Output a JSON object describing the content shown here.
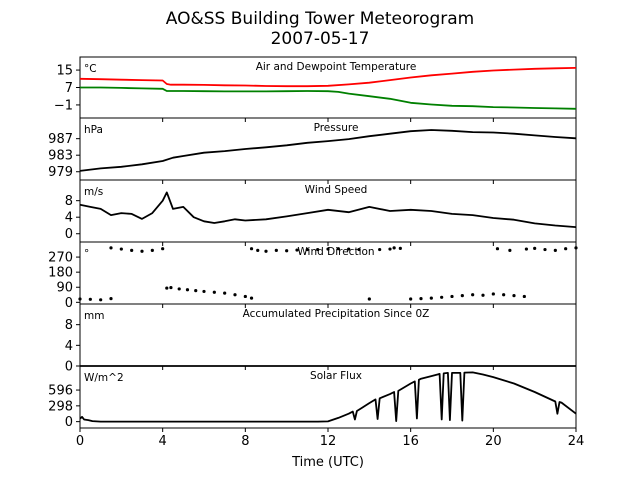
{
  "chart_data": {
    "type": "line",
    "title": "AO&SS Building Tower Meteorogram",
    "subtitle": "2007-05-17",
    "xlabel": "Time (UTC)",
    "xlim": [
      0,
      24
    ],
    "xticks": [
      0,
      4,
      8,
      12,
      16,
      20,
      24
    ],
    "xtick_labels": [
      "0",
      "4",
      "8",
      "12",
      "16",
      "20",
      "24"
    ],
    "panels": [
      {
        "key": "temp",
        "title": "Air and Dewpoint Temperature",
        "unit": "°C",
        "ylim": [
          -7,
          21
        ],
        "yticks": [
          15,
          7,
          -1
        ],
        "ytick_labels": [
          "15",
          "7",
          "−1"
        ],
        "series": [
          {
            "color": "#ff0000",
            "style": "line",
            "x": [
              0,
              1,
              2,
              3,
              4,
              4.2,
              4.4,
              5,
              6,
              7,
              8,
              9,
              10,
              11,
              12,
              13,
              14,
              15,
              16,
              17,
              18,
              19,
              20,
              21,
              22,
              23,
              24
            ],
            "y": [
              11,
              10.8,
              10.6,
              10.4,
              10.2,
              8.6,
              8.3,
              8.3,
              8.2,
              8,
              7.9,
              7.7,
              7.6,
              7.6,
              7.8,
              8.4,
              9.2,
              10.4,
              11.6,
              12.6,
              13.4,
              14.2,
              14.8,
              15.2,
              15.6,
              15.8,
              16
            ]
          },
          {
            "color": "#008000",
            "style": "line",
            "x": [
              0,
              1,
              2,
              3,
              4,
              4.2,
              5,
              6,
              7,
              8,
              9,
              10,
              11,
              12,
              12.5,
              13,
              14,
              15,
              16,
              17,
              18,
              19,
              20,
              21,
              22,
              23,
              24
            ],
            "y": [
              7,
              7,
              6.8,
              6.6,
              6.4,
              5.4,
              5.4,
              5.3,
              5.2,
              5.2,
              5.2,
              5.3,
              5.4,
              5.3,
              5,
              4.2,
              3,
              1.8,
              0,
              -0.8,
              -1.4,
              -1.6,
              -2,
              -2.2,
              -2.4,
              -2.6,
              -2.8
            ]
          }
        ]
      },
      {
        "key": "pres",
        "title": "Pressure",
        "unit": "hPa",
        "ylim": [
          977,
          992
        ],
        "yticks": [
          987,
          983,
          979
        ],
        "ytick_labels": [
          "987",
          "983",
          "979"
        ],
        "series": [
          {
            "color": "#000000",
            "style": "line",
            "x": [
              0,
              1,
              2,
              3,
              4,
              4.5,
              5,
              6,
              7,
              8,
              9,
              10,
              11,
              12,
              13,
              14,
              15,
              16,
              17,
              18,
              19,
              20,
              21,
              22,
              23,
              24
            ],
            "y": [
              979.2,
              979.8,
              980.2,
              980.8,
              981.6,
              982.4,
              982.8,
              983.6,
              984,
              984.5,
              984.9,
              985.4,
              986,
              986.4,
              986.9,
              987.6,
              988.2,
              988.8,
              989.1,
              988.9,
              988.6,
              988.5,
              988.2,
              987.8,
              987.4,
              987.1
            ]
          }
        ]
      },
      {
        "key": "wind",
        "title": "Wind Speed",
        "unit": "m/s",
        "ylim": [
          -2,
          13
        ],
        "yticks": [
          8,
          4,
          0
        ],
        "ytick_labels": [
          "8",
          "4",
          "0"
        ],
        "series": [
          {
            "color": "#000000",
            "style": "line",
            "x": [
              0,
              0.5,
              1,
              1.5,
              2,
              2.5,
              3,
              3.5,
              4,
              4.2,
              4.5,
              5,
              5.5,
              6,
              6.5,
              7,
              7.5,
              8,
              9,
              10,
              11,
              12,
              13,
              14,
              15,
              16,
              17,
              18,
              19,
              20,
              21,
              22,
              23,
              24
            ],
            "y": [
              7,
              6.5,
              6,
              4.5,
              5,
              4.8,
              3.6,
              5,
              8,
              10,
              6,
              6.5,
              4,
              3,
              2.6,
              3,
              3.5,
              3.2,
              3.5,
              4.2,
              5,
              5.8,
              5.2,
              6.5,
              5.5,
              5.8,
              5.5,
              4.8,
              4.5,
              3.8,
              3.4,
              2.5,
              2,
              1.6
            ]
          }
        ]
      },
      {
        "key": "dir",
        "title": "Wind Direction",
        "unit": "°",
        "ylim": [
          -10,
          360
        ],
        "yticks": [
          270,
          180,
          90,
          0
        ],
        "ytick_labels": [
          "270",
          "180",
          "90",
          "0"
        ],
        "series": [
          {
            "color": "#000000",
            "style": "dots",
            "x": [
              0,
              0.5,
              1,
              1.5,
              1.5,
              2,
              2.5,
              3,
              3.5,
              4,
              4.2,
              4.4,
              4.8,
              5.2,
              5.6,
              6,
              6.5,
              7,
              7.5,
              8,
              8.3,
              8.3,
              8.6,
              9,
              9.5,
              10,
              10.5,
              11,
              11.5,
              12,
              12.5,
              13,
              13.5,
              14,
              14.5,
              15,
              15.5,
              15.2,
              16,
              16.5,
              17,
              17.5,
              18,
              18.5,
              19,
              19.5,
              20,
              20.5,
              21,
              21.5,
              20.2,
              20.8,
              21.6,
              22,
              22.5,
              23,
              23.5,
              24
            ],
            "y": [
              20,
              18,
              15,
              22,
              325,
              318,
              310,
              305,
              310,
              320,
              85,
              88,
              80,
              75,
              70,
              65,
              60,
              55,
              45,
              35,
              25,
              320,
              310,
              305,
              310,
              308,
              312,
              315,
              315,
              318,
              320,
              318,
              315,
              20,
              315,
              318,
              322,
              325,
              20,
              22,
              25,
              30,
              35,
              40,
              45,
              42,
              50,
              45,
              40,
              35,
              320,
              310,
              318,
              322,
              315,
              310,
              320,
              325
            ]
          }
        ]
      },
      {
        "key": "precip",
        "title": "Accumulated Precipitation Since 0Z",
        "unit": "mm",
        "ylim": [
          0,
          12
        ],
        "yticks": [
          8,
          4,
          0
        ],
        "ytick_labels": [
          "8",
          "4",
          "0"
        ],
        "series": [
          {
            "color": "#000000",
            "style": "line",
            "x": [
              0,
              24
            ],
            "y": [
              0,
              0
            ]
          }
        ]
      },
      {
        "key": "solar",
        "title": "Solar Flux",
        "unit": "W/m^2",
        "ylim": [
          -120,
          1050
        ],
        "yticks": [
          596,
          298,
          0
        ],
        "ytick_labels": [
          "596",
          "298",
          "0"
        ],
        "series": [
          {
            "color": "#000000",
            "style": "line",
            "x": [
              0,
              0.1,
              0.2,
              0.4,
              0.6,
              1,
              2,
              4,
              6,
              8,
              10,
              11.5,
              12,
              12.5,
              13,
              13.2,
              13.3,
              13.4,
              13.6,
              14,
              14.3,
              14.4,
              14.5,
              15,
              15.2,
              15.3,
              15.4,
              16,
              16.2,
              16.3,
              16.4,
              16.5,
              17,
              17.3,
              17.4,
              17.5,
              17.6,
              17.8,
              17.9,
              18,
              18.4,
              18.5,
              18.6,
              19,
              19.5,
              20,
              21,
              22,
              23,
              23.1,
              23.2,
              23.3,
              24
            ],
            "y": [
              60,
              90,
              40,
              30,
              10,
              0,
              0,
              0,
              0,
              0,
              0,
              0,
              5,
              70,
              150,
              190,
              40,
              200,
              250,
              350,
              420,
              50,
              440,
              520,
              560,
              10,
              580,
              720,
              760,
              60,
              790,
              810,
              860,
              890,
              900,
              40,
              910,
              920,
              30,
              920,
              920,
              20,
              925,
              930,
              890,
              840,
              720,
              560,
              380,
              150,
              370,
              360,
              150
            ]
          }
        ]
      }
    ],
    "grid": false,
    "legend": "none"
  }
}
